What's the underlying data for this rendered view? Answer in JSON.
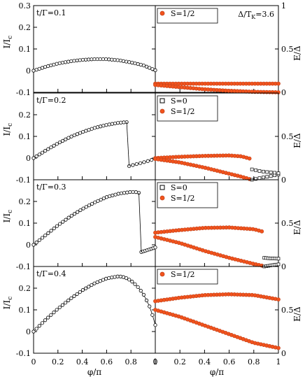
{
  "chart_data": {
    "type": "scatter",
    "x_label": "φ/π",
    "left_y_label": "I/I",
    "left_y_label_sub": "c",
    "right_y_label": "E/Δ",
    "annotation": "Δ/T",
    "annotation_sub": "K",
    "annotation_value": "=3.6",
    "x_ticks": [
      "0",
      "0.2",
      "0.4",
      "0.6",
      "0.8",
      "1"
    ],
    "left_y_ticks": [
      "0",
      "0.1",
      "0.2",
      "0.3",
      "-0.1"
    ],
    "right_y_ticks": [
      "0",
      "0.5",
      "1"
    ],
    "xlim": [
      0,
      1
    ],
    "left_ylim": [
      -0.1,
      0.3
    ],
    "right_ylim": [
      0,
      1
    ],
    "colors": {
      "s0": "#000000",
      "s_half_fill": "#f2531c",
      "s_half_edge": "#c0401a",
      "axis": "#000000"
    },
    "panels": [
      {
        "label": "t/Γ=0.1",
        "legend": [
          {
            "name": "S=1/2",
            "kind": "s_half"
          }
        ],
        "current": [
          [
            0,
            0
          ],
          [
            0.1,
            0.018
          ],
          [
            0.2,
            0.033
          ],
          [
            0.3,
            0.043
          ],
          [
            0.4,
            0.05
          ],
          [
            0.5,
            0.053
          ],
          [
            0.6,
            0.053
          ],
          [
            0.7,
            0.048
          ],
          [
            0.8,
            0.038
          ],
          [
            0.9,
            0.025
          ],
          [
            1.0,
            0.002
          ]
        ],
        "current_jump": null,
        "energy_half": [
          [
            [
              0,
              0.1
            ],
            [
              0.2,
              0.1
            ],
            [
              0.4,
              0.1
            ],
            [
              0.6,
              0.1
            ],
            [
              0.8,
              0.1
            ],
            [
              1.0,
              0.1
            ]
          ],
          [
            [
              0,
              0.085
            ],
            [
              0.2,
              0.06
            ],
            [
              0.4,
              0.035
            ],
            [
              0.6,
              0.018
            ],
            [
              0.8,
              0.006
            ],
            [
              1.0,
              0.0
            ]
          ]
        ],
        "energy_s0": []
      },
      {
        "label": "t/Γ=0.2",
        "legend": [
          {
            "name": "S=0",
            "kind": "s0"
          },
          {
            "name": "S=1/2",
            "kind": "s_half"
          }
        ],
        "current": [
          [
            0,
            0
          ],
          [
            0.1,
            0.035
          ],
          [
            0.2,
            0.068
          ],
          [
            0.3,
            0.097
          ],
          [
            0.4,
            0.12
          ],
          [
            0.5,
            0.139
          ],
          [
            0.6,
            0.153
          ],
          [
            0.7,
            0.163
          ],
          [
            0.765,
            0.166
          ]
        ],
        "current_after": [
          [
            0.785,
            -0.037
          ],
          [
            0.85,
            -0.027
          ],
          [
            0.9,
            -0.02
          ],
          [
            0.95,
            -0.012
          ],
          [
            1.0,
            -0.003
          ]
        ],
        "energy_half": [
          [
            [
              0,
              0.25
            ],
            [
              0.2,
              0.265
            ],
            [
              0.4,
              0.275
            ],
            [
              0.6,
              0.28
            ],
            [
              0.7,
              0.27
            ],
            [
              0.765,
              0.245
            ]
          ],
          [
            [
              0,
              0.24
            ],
            [
              0.2,
              0.2
            ],
            [
              0.4,
              0.14
            ],
            [
              0.6,
              0.07
            ],
            [
              0.7,
              0.035
            ],
            [
              0.765,
              0.008
            ]
          ]
        ],
        "energy_s0": [
          [
            [
              0.785,
              0.0
            ],
            [
              0.85,
              0.02
            ],
            [
              0.9,
              0.032
            ],
            [
              0.95,
              0.045
            ],
            [
              1.0,
              0.06
            ]
          ],
          [
            [
              0.785,
              0.12
            ],
            [
              0.85,
              0.1
            ],
            [
              0.9,
              0.09
            ],
            [
              0.95,
              0.085
            ],
            [
              1.0,
              0.075
            ]
          ]
        ]
      },
      {
        "label": "t/Γ=0.3",
        "legend": [
          {
            "name": "S=0",
            "kind": "s0"
          },
          {
            "name": "S=1/2",
            "kind": "s_half"
          }
        ],
        "current": [
          [
            0,
            0
          ],
          [
            0.1,
            0.045
          ],
          [
            0.2,
            0.09
          ],
          [
            0.3,
            0.13
          ],
          [
            0.4,
            0.165
          ],
          [
            0.5,
            0.195
          ],
          [
            0.6,
            0.22
          ],
          [
            0.7,
            0.236
          ],
          [
            0.8,
            0.244
          ],
          [
            0.85,
            0.243
          ],
          [
            0.865,
            0.24
          ]
        ],
        "current_after": [
          [
            0.885,
            -0.033
          ],
          [
            0.92,
            -0.027
          ],
          [
            0.96,
            -0.02
          ],
          [
            1.0,
            -0.012
          ]
        ],
        "energy_half": [
          [
            [
              0,
              0.39
            ],
            [
              0.2,
              0.42
            ],
            [
              0.4,
              0.445
            ],
            [
              0.6,
              0.45
            ],
            [
              0.8,
              0.43
            ],
            [
              0.865,
              0.405
            ]
          ],
          [
            [
              0,
              0.34
            ],
            [
              0.2,
              0.27
            ],
            [
              0.4,
              0.18
            ],
            [
              0.6,
              0.1
            ],
            [
              0.8,
              0.03
            ],
            [
              0.865,
              0.01
            ]
          ]
        ],
        "energy_s0": [
          [
            [
              0.885,
              0.0
            ],
            [
              0.92,
              0.008
            ],
            [
              0.96,
              0.018
            ],
            [
              1.0,
              0.025
            ]
          ],
          [
            [
              0.885,
              0.1
            ],
            [
              0.92,
              0.095
            ],
            [
              0.96,
              0.092
            ],
            [
              1.0,
              0.09
            ]
          ]
        ]
      },
      {
        "label": "t/Γ=0.4",
        "legend": [
          {
            "name": "S=1/2",
            "kind": "s_half"
          }
        ],
        "current": [
          [
            0,
            0
          ],
          [
            0.1,
            0.055
          ],
          [
            0.2,
            0.105
          ],
          [
            0.3,
            0.15
          ],
          [
            0.4,
            0.19
          ],
          [
            0.5,
            0.222
          ],
          [
            0.6,
            0.245
          ],
          [
            0.7,
            0.255
          ],
          [
            0.75,
            0.25
          ],
          [
            0.8,
            0.235
          ],
          [
            0.85,
            0.21
          ],
          [
            0.9,
            0.175
          ],
          [
            0.95,
            0.12
          ],
          [
            0.98,
            0.07
          ],
          [
            1.0,
            0.03
          ]
        ],
        "current_jump": null,
        "energy_half": [
          [
            [
              0,
              0.6
            ],
            [
              0.2,
              0.64
            ],
            [
              0.4,
              0.67
            ],
            [
              0.6,
              0.68
            ],
            [
              0.8,
              0.67
            ],
            [
              1.0,
              0.62
            ]
          ],
          [
            [
              0,
              0.5
            ],
            [
              0.2,
              0.42
            ],
            [
              0.4,
              0.32
            ],
            [
              0.6,
              0.22
            ],
            [
              0.8,
              0.12
            ],
            [
              1.0,
              0.06
            ]
          ]
        ],
        "energy_s0": []
      }
    ]
  }
}
